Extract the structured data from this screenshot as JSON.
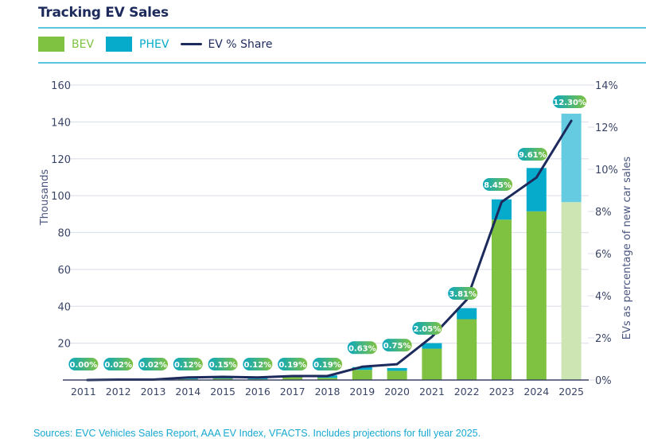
{
  "header": {
    "title": "Tracking EV Sales"
  },
  "legend": {
    "items": [
      {
        "label": "BEV",
        "color": "#7fc241",
        "text_color": "#7fc241",
        "kind": "box"
      },
      {
        "label": "PHEV",
        "color": "#06aacb",
        "text_color": "#06aacb",
        "kind": "box"
      },
      {
        "label": "EV % Share",
        "color": "#1d2a5c",
        "text_color": "#1d2a5c",
        "kind": "line"
      }
    ]
  },
  "footer": {
    "source": "Sources: EVC Vehicles Sales Report, AAA EV Index, VFACTS. Includes projections for full year 2025."
  },
  "chart_data": {
    "type": "bar",
    "stacked": true,
    "title": "Tracking EV Sales",
    "xlabel": "",
    "ylabel": "Thousands",
    "y2label": "EVs as percentage of new car sales",
    "ylim": [
      0,
      160
    ],
    "y2lim": [
      0,
      14
    ],
    "yticks": [
      20,
      40,
      60,
      80,
      100,
      120,
      140,
      160
    ],
    "y2ticks": [
      "0%",
      "2%",
      "4%",
      "6%",
      "8%",
      "10%",
      "12%",
      "14%"
    ],
    "y2tick_values": [
      0,
      2,
      4,
      6,
      8,
      10,
      12,
      14
    ],
    "grid": true,
    "legend_position": "top-left",
    "categories": [
      "2011",
      "2012",
      "2013",
      "2014",
      "2015",
      "2016",
      "2017",
      "2018",
      "2019",
      "2020",
      "2021",
      "2022",
      "2023",
      "2024",
      "2025"
    ],
    "series": [
      {
        "name": "BEV",
        "axis": "left",
        "color": "#7fc241",
        "projected_color": "#cde5b3",
        "values": [
          0.05,
          0.1,
          0.1,
          0.5,
          0.8,
          0.5,
          1.5,
          1.2,
          5.5,
          5,
          17,
          33,
          87,
          91.5,
          96.5
        ]
      },
      {
        "name": "PHEV",
        "axis": "left",
        "color": "#06aacb",
        "projected_color": "#65cbe0",
        "values": [
          0,
          0.1,
          0.2,
          0.8,
          0.7,
          0.7,
          0.5,
          1.3,
          1.5,
          1.5,
          3,
          6,
          11,
          23.5,
          48
        ]
      },
      {
        "name": "EV % Share",
        "type": "line",
        "axis": "right",
        "color": "#1d2a5c",
        "values": [
          0.0,
          0.02,
          0.02,
          0.12,
          0.15,
          0.12,
          0.19,
          0.19,
          0.63,
          0.75,
          2.05,
          3.81,
          8.45,
          9.61,
          12.3
        ],
        "labels": [
          "0.00%",
          "0.02%",
          "0.02%",
          "0.12%",
          "0.15%",
          "0.12%",
          "0.19%",
          "0.19%",
          "0.63%",
          "0.75%",
          "2.05%",
          "3.81%",
          "8.45%",
          "9.61%",
          "12.30%"
        ]
      }
    ],
    "projected_categories": [
      "2025"
    ],
    "label_gradient": [
      "#0aa7bf",
      "#7fc241"
    ]
  }
}
